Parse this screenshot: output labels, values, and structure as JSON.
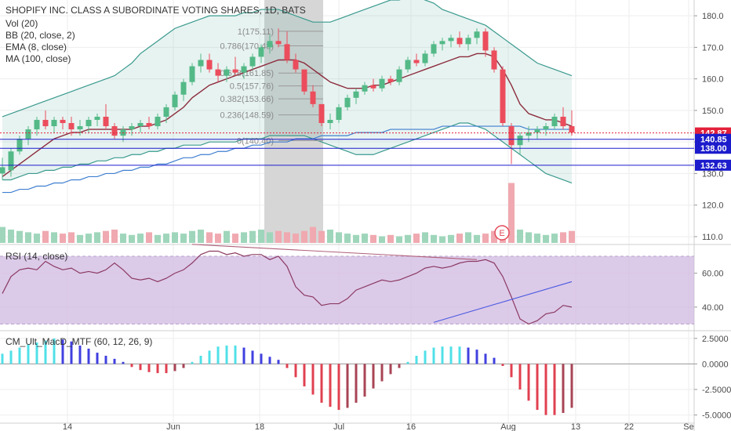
{
  "title": "SHOPIFY INC. CLASS A SUBORDINATE VOTING SHARES, 1D, BATS",
  "legend": [
    {
      "key": "vol",
      "text": "Vol (20)"
    },
    {
      "key": "bb",
      "text": "BB (20, close, 2)"
    },
    {
      "key": "ema",
      "text": "EMA (8, close)"
    },
    {
      "key": "ma",
      "text": "MA (100, close)"
    }
  ],
  "rsi_label": "RSI (14, close)",
  "macd_label": "CM_Ult_MacD_MTF (60, 12, 26, 9)",
  "earnings_marker": "E",
  "colors": {
    "up": "#53b987",
    "down": "#eb4d5c",
    "bb": "#3a9a8e",
    "ema": "#3f7fd0",
    "ma": "#8b2c3c",
    "rsi": "#8b3a62",
    "rsi_band": "#cdb4e0",
    "macd_up": "#4040e0",
    "macd_up_light": "#50e0e8",
    "macd_dn": "#e04050",
    "macd_dn_dark": "#a84455",
    "hline": "#1c1ccc",
    "last": "#e3203a"
  },
  "chart_data": [
    {
      "type": "candlestick",
      "title": "SHOPIFY INC. CLASS A SUBORDINATE VOTING SHARES, 1D, BATS",
      "x_ticks": [
        "14",
        "Jun",
        "18",
        "Jul",
        "16",
        "Aug",
        "13",
        "22",
        "Se"
      ],
      "y_ticks": [
        110,
        120,
        130,
        140,
        150,
        160,
        170,
        180
      ],
      "ylim": [
        108,
        185
      ],
      "price_labels": [
        {
          "value": 142.87,
          "label": "142.87",
          "color": "#e3203a"
        },
        {
          "value": 140.85,
          "label": "140.85",
          "color": "#1c1ccc"
        },
        {
          "value": 138.0,
          "label": "138.00",
          "color": "#1c1ccc"
        },
        {
          "value": 132.63,
          "label": "132.63",
          "color": "#1c1ccc"
        }
      ],
      "fibonacci": [
        {
          "label": "1(175.11)",
          "value": 175.11
        },
        {
          "label": "0.786(170.48)",
          "value": 170.48
        },
        {
          "label": "0.618(161.85)",
          "value": 161.85
        },
        {
          "label": "0.5(157.76)",
          "value": 157.76
        },
        {
          "label": "0.382(153.66)",
          "value": 153.66
        },
        {
          "label": "0.236(148.59)",
          "value": 148.59
        },
        {
          "label": "0(140.40)",
          "value": 140.4
        }
      ],
      "candles": [
        {
          "o": 130,
          "h": 135,
          "l": 128,
          "c": 132
        },
        {
          "o": 131,
          "h": 138,
          "l": 129,
          "c": 137
        },
        {
          "o": 137,
          "h": 142,
          "l": 136,
          "c": 141
        },
        {
          "o": 141,
          "h": 145,
          "l": 139,
          "c": 144
        },
        {
          "o": 144,
          "h": 148,
          "l": 142,
          "c": 147
        },
        {
          "o": 147,
          "h": 150,
          "l": 144,
          "c": 145
        },
        {
          "o": 145,
          "h": 148,
          "l": 143,
          "c": 147
        },
        {
          "o": 147,
          "h": 148,
          "l": 144,
          "c": 146
        },
        {
          "o": 146,
          "h": 148,
          "l": 142,
          "c": 144
        },
        {
          "o": 144,
          "h": 147,
          "l": 142,
          "c": 145
        },
        {
          "o": 145,
          "h": 148,
          "l": 143,
          "c": 147
        },
        {
          "o": 147,
          "h": 149,
          "l": 145,
          "c": 148
        },
        {
          "o": 148,
          "h": 152,
          "l": 144,
          "c": 145
        },
        {
          "o": 145,
          "h": 146,
          "l": 141,
          "c": 142
        },
        {
          "o": 142,
          "h": 145,
          "l": 140,
          "c": 144
        },
        {
          "o": 144,
          "h": 146,
          "l": 142,
          "c": 145
        },
        {
          "o": 145,
          "h": 147,
          "l": 143,
          "c": 146
        },
        {
          "o": 146,
          "h": 148,
          "l": 144,
          "c": 145
        },
        {
          "o": 145,
          "h": 149,
          "l": 144,
          "c": 148
        },
        {
          "o": 148,
          "h": 152,
          "l": 146,
          "c": 151
        },
        {
          "o": 151,
          "h": 156,
          "l": 150,
          "c": 155
        },
        {
          "o": 155,
          "h": 160,
          "l": 153,
          "c": 159
        },
        {
          "o": 159,
          "h": 165,
          "l": 158,
          "c": 164
        },
        {
          "o": 164,
          "h": 168,
          "l": 162,
          "c": 166
        },
        {
          "o": 166,
          "h": 168,
          "l": 162,
          "c": 163
        },
        {
          "o": 163,
          "h": 165,
          "l": 159,
          "c": 161
        },
        {
          "o": 161,
          "h": 164,
          "l": 159,
          "c": 163
        },
        {
          "o": 163,
          "h": 167,
          "l": 161,
          "c": 162
        },
        {
          "o": 162,
          "h": 165,
          "l": 160,
          "c": 164
        },
        {
          "o": 164,
          "h": 168,
          "l": 163,
          "c": 167
        },
        {
          "o": 167,
          "h": 171,
          "l": 165,
          "c": 170
        },
        {
          "o": 170,
          "h": 174,
          "l": 168,
          "c": 172
        },
        {
          "o": 172,
          "h": 176,
          "l": 170,
          "c": 171
        },
        {
          "o": 171,
          "h": 175,
          "l": 165,
          "c": 166
        },
        {
          "o": 166,
          "h": 168,
          "l": 162,
          "c": 163
        },
        {
          "o": 163,
          "h": 163,
          "l": 155,
          "c": 156
        },
        {
          "o": 156,
          "h": 158,
          "l": 151,
          "c": 152
        },
        {
          "o": 152,
          "h": 152,
          "l": 145,
          "c": 146
        },
        {
          "o": 146,
          "h": 149,
          "l": 144,
          "c": 147
        },
        {
          "o": 147,
          "h": 152,
          "l": 146,
          "c": 151
        },
        {
          "o": 151,
          "h": 155,
          "l": 150,
          "c": 154
        },
        {
          "o": 154,
          "h": 157,
          "l": 152,
          "c": 156
        },
        {
          "o": 156,
          "h": 159,
          "l": 155,
          "c": 158
        },
        {
          "o": 158,
          "h": 160,
          "l": 156,
          "c": 157
        },
        {
          "o": 157,
          "h": 161,
          "l": 156,
          "c": 160
        },
        {
          "o": 160,
          "h": 161,
          "l": 158,
          "c": 159
        },
        {
          "o": 159,
          "h": 164,
          "l": 158,
          "c": 163
        },
        {
          "o": 163,
          "h": 167,
          "l": 162,
          "c": 166
        },
        {
          "o": 166,
          "h": 168,
          "l": 164,
          "c": 165
        },
        {
          "o": 165,
          "h": 169,
          "l": 164,
          "c": 168
        },
        {
          "o": 168,
          "h": 172,
          "l": 167,
          "c": 171
        },
        {
          "o": 171,
          "h": 173,
          "l": 169,
          "c": 172
        },
        {
          "o": 172,
          "h": 174,
          "l": 170,
          "c": 173
        },
        {
          "o": 173,
          "h": 175,
          "l": 170,
          "c": 171
        },
        {
          "o": 171,
          "h": 174,
          "l": 169,
          "c": 173
        },
        {
          "o": 173,
          "h": 176,
          "l": 171,
          "c": 175
        },
        {
          "o": 175,
          "h": 176,
          "l": 167,
          "c": 169
        },
        {
          "o": 169,
          "h": 170,
          "l": 162,
          "c": 163
        },
        {
          "o": 163,
          "h": 164,
          "l": 145,
          "c": 146
        },
        {
          "o": 145,
          "h": 146,
          "l": 133,
          "c": 139
        },
        {
          "o": 139,
          "h": 143,
          "l": 136,
          "c": 142
        },
        {
          "o": 142,
          "h": 145,
          "l": 140,
          "c": 143
        },
        {
          "o": 143,
          "h": 145,
          "l": 141,
          "c": 144
        },
        {
          "o": 144,
          "h": 146,
          "l": 142,
          "c": 145
        },
        {
          "o": 145,
          "h": 149,
          "l": 144,
          "c": 148
        },
        {
          "o": 148,
          "h": 151,
          "l": 144,
          "c": 145
        },
        {
          "o": 145,
          "h": 150,
          "l": 142,
          "c": 143
        }
      ],
      "bb_upper": [
        148,
        149,
        150,
        151,
        152,
        153,
        154,
        155,
        156,
        157,
        158,
        159,
        160,
        161,
        163,
        165,
        168,
        170,
        172,
        174,
        176,
        177,
        178,
        179,
        180,
        180,
        180,
        180,
        181,
        181,
        182,
        182,
        182,
        181,
        180,
        179,
        178,
        178,
        178,
        179,
        180,
        181,
        182,
        183,
        184,
        185,
        185,
        186,
        186,
        185,
        184,
        182,
        181,
        180,
        179,
        178,
        177,
        175,
        173,
        171,
        169,
        167,
        165,
        164,
        163,
        162,
        161
      ],
      "bb_lower": [
        128,
        128,
        129,
        130,
        130,
        131,
        131,
        132,
        132,
        133,
        133,
        134,
        134,
        135,
        135,
        136,
        136,
        137,
        137,
        138,
        138,
        139,
        139,
        139,
        140,
        140,
        140,
        140,
        141,
        141,
        141,
        142,
        142,
        142,
        142,
        142,
        141,
        140,
        139,
        138,
        137,
        136,
        136,
        136,
        137,
        138,
        139,
        140,
        141,
        142,
        143,
        144,
        145,
        146,
        146,
        145,
        144,
        142,
        140,
        138,
        136,
        134,
        132,
        130,
        129,
        128,
        127
      ],
      "ema": [
        129,
        131,
        133,
        135,
        137,
        139,
        141,
        142,
        143,
        143,
        144,
        144,
        144,
        144,
        144,
        144,
        145,
        145,
        146,
        147,
        149,
        151,
        154,
        156,
        158,
        159,
        160,
        161,
        162,
        163,
        164,
        165,
        166,
        166,
        166,
        165,
        163,
        161,
        159,
        158,
        157,
        157,
        157,
        158,
        158,
        159,
        160,
        161,
        162,
        163,
        164,
        165,
        166,
        167,
        167,
        168,
        168,
        167,
        163,
        158,
        152,
        149,
        148,
        147,
        147,
        146,
        145
      ],
      "ma": [
        124,
        124,
        125,
        125,
        126,
        126,
        127,
        127,
        128,
        128,
        129,
        129,
        130,
        130,
        131,
        131,
        132,
        132,
        133,
        133,
        134,
        135,
        135,
        136,
        136,
        137,
        137,
        138,
        138,
        139,
        139,
        140,
        140,
        140,
        141,
        141,
        141,
        142,
        142,
        142,
        142,
        143,
        143,
        143,
        143,
        144,
        144,
        144,
        144,
        144,
        144,
        145,
        145,
        145,
        145,
        145,
        145,
        145,
        145,
        145,
        145,
        144,
        144,
        144,
        144,
        144,
        144
      ]
    },
    {
      "type": "bar",
      "name": "Vol (20)",
      "values": [
        1.2,
        1.0,
        0.9,
        0.8,
        0.7,
        0.9,
        0.8,
        0.7,
        0.8,
        0.6,
        0.7,
        0.8,
        0.9,
        1.0,
        0.7,
        0.6,
        0.7,
        0.8,
        0.6,
        0.7,
        0.8,
        0.7,
        0.9,
        1.0,
        0.8,
        0.7,
        0.9,
        0.7,
        0.8,
        0.9,
        1.0,
        0.8,
        0.9,
        0.8,
        0.7,
        0.9,
        1.2,
        0.9,
        1.0,
        0.8,
        0.7,
        0.6,
        0.7,
        0.6,
        0.5,
        0.6,
        0.5,
        0.6,
        0.7,
        0.8,
        0.6,
        0.5,
        0.6,
        0.7,
        0.8,
        0.6,
        0.7,
        0.9,
        1.1,
        4.5,
        1.0,
        0.8,
        0.7,
        0.6,
        0.7,
        0.8,
        0.9
      ]
    },
    {
      "type": "line",
      "name": "RSI (14, close)",
      "y_ticks": [
        40,
        60
      ],
      "ylim": [
        27,
        76
      ],
      "band": [
        30,
        70
      ],
      "values": [
        48,
        58,
        62,
        63,
        62,
        67,
        64,
        62,
        63,
        60,
        61,
        60,
        62,
        66,
        62,
        57,
        56,
        57,
        55,
        57,
        60,
        62,
        66,
        71,
        73,
        73,
        71,
        72,
        70,
        71,
        71,
        68,
        70,
        64,
        52,
        47,
        46,
        41,
        42,
        42,
        45,
        50,
        52,
        54,
        56,
        55,
        56,
        58,
        60,
        63,
        64,
        63,
        64,
        66,
        67,
        67,
        68,
        66,
        58,
        46,
        33,
        30,
        32,
        36,
        37,
        41,
        40
      ],
      "trendlines": [
        {
          "x": [
            22,
            55
          ],
          "y": [
            77,
            68
          ]
        },
        {
          "x": [
            50,
            66
          ],
          "y": [
            31,
            55
          ]
        }
      ]
    },
    {
      "type": "bar",
      "name": "CM_Ult_MacD_MTF (60, 12, 26, 9)",
      "y_ticks": [
        2.5,
        0,
        -2.5,
        -5
      ],
      "ylim": [
        -5.8,
        3.1
      ],
      "values": [
        1.0,
        1.3,
        1.6,
        1.9,
        2.1,
        2.3,
        2.5,
        2.4,
        2.2,
        1.8,
        1.5,
        1.1,
        0.8,
        0.5,
        0.2,
        -0.3,
        -0.6,
        -0.8,
        -0.9,
        -0.9,
        -0.7,
        -0.4,
        0.2,
        0.8,
        1.3,
        1.7,
        1.8,
        1.8,
        1.6,
        1.3,
        1.0,
        0.7,
        0.4,
        -0.4,
        -1.3,
        -2.2,
        -3.0,
        -3.8,
        -4.2,
        -4.5,
        -4.3,
        -3.8,
        -3.2,
        -2.4,
        -1.7,
        -1.0,
        -0.4,
        0.2,
        0.8,
        1.3,
        1.6,
        1.7,
        1.7,
        1.7,
        1.6,
        1.4,
        1.0,
        0.6,
        -0.2,
        -1.3,
        -2.5,
        -3.6,
        -4.5,
        -5.0,
        -5.0,
        -4.8,
        -4.3
      ]
    }
  ]
}
